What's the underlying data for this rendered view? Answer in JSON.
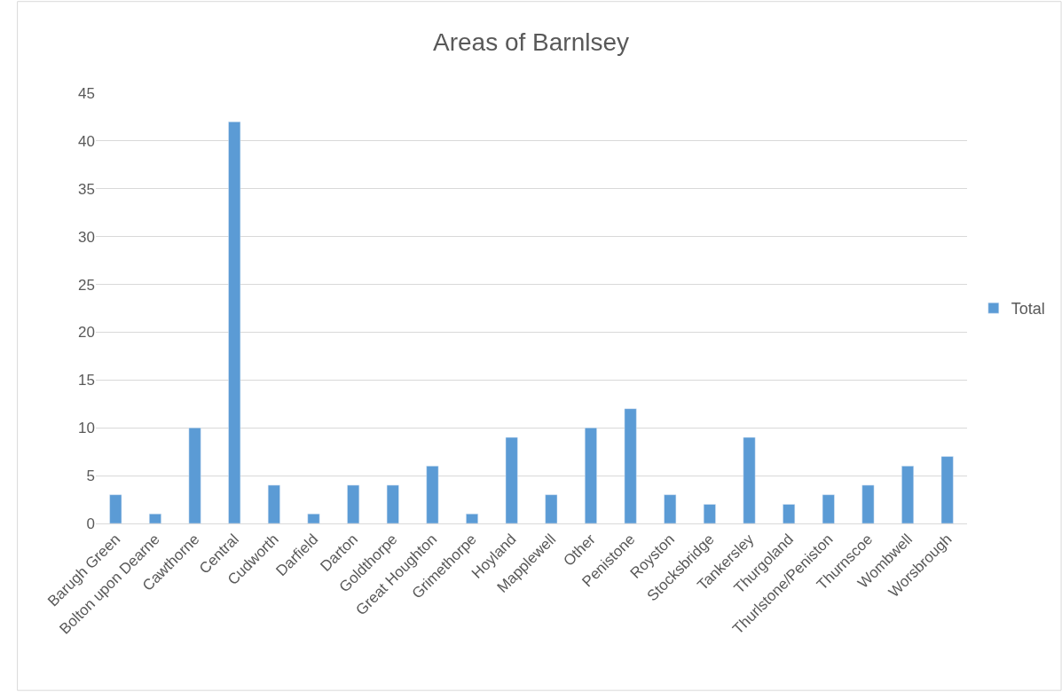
{
  "chart_data": {
    "type": "bar",
    "title": "Areas of Barnlsey",
    "categories": [
      "Barugh Green",
      "Bolton upon Dearne",
      "Cawthorne",
      "Central",
      "Cudworth",
      "Darfield",
      "Darton",
      "Goldthorpe",
      "Great Houghton",
      "Grimethorpe",
      "Hoyland",
      "Mapplewell",
      "Other",
      "Penistone",
      "Royston",
      "Stocksbridge",
      "Tankersley",
      "Thurgoland",
      "Thurlstone/Peniston",
      "Thurnscoe",
      "Wombwell",
      "Worsbrough"
    ],
    "series": [
      {
        "name": "Total",
        "color": "#5b9bd5",
        "values": [
          3,
          1,
          10,
          42,
          4,
          1,
          4,
          4,
          6,
          1,
          9,
          3,
          10,
          12,
          3,
          2,
          9,
          2,
          3,
          4,
          6,
          7
        ]
      }
    ],
    "ylim": [
      0,
      45
    ],
    "yticks": [
      0,
      5,
      10,
      15,
      20,
      25,
      30,
      35,
      40,
      45
    ],
    "grid": "y",
    "legend": "right"
  }
}
